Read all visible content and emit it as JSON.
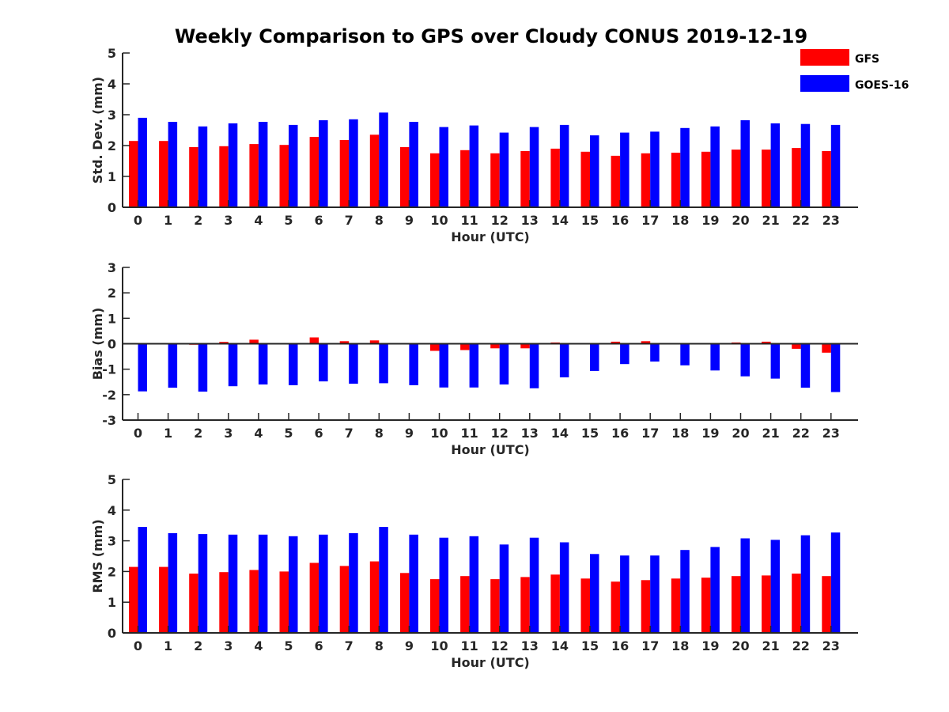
{
  "figure": {
    "title": "Weekly Comparison to GPS over Cloudy CONUS 2019-12-19"
  },
  "legend": {
    "placement": "top-right",
    "items": [
      {
        "label": "GFS",
        "color": "#ff0000"
      },
      {
        "label": "GOES-16",
        "color": "#0000ff"
      }
    ]
  },
  "chart_data": [
    {
      "type": "bar",
      "title": "Weekly Comparison to GPS over Cloudy CONUS 2019-12-19",
      "xlabel": "Hour (UTC)",
      "ylabel": "Std. Dev. (mm)",
      "ylim": [
        0,
        5
      ],
      "yticks": [
        0,
        1,
        2,
        3,
        4,
        5
      ],
      "grid": false,
      "categories": [
        "0",
        "1",
        "2",
        "3",
        "4",
        "5",
        "6",
        "7",
        "8",
        "9",
        "10",
        "11",
        "12",
        "13",
        "14",
        "15",
        "16",
        "17",
        "18",
        "19",
        "20",
        "21",
        "22",
        "23"
      ],
      "series": [
        {
          "name": "GFS",
          "color": "#ff0000",
          "values": [
            2.15,
            2.15,
            1.95,
            1.98,
            2.05,
            2.02,
            2.28,
            2.18,
            2.35,
            1.95,
            1.75,
            1.85,
            1.75,
            1.82,
            1.9,
            1.8,
            1.67,
            1.75,
            1.77,
            1.8,
            1.87,
            1.87,
            1.92,
            1.82
          ]
        },
        {
          "name": "GOES-16",
          "color": "#0000ff",
          "values": [
            2.9,
            2.77,
            2.62,
            2.72,
            2.77,
            2.67,
            2.82,
            2.85,
            3.07,
            2.77,
            2.6,
            2.65,
            2.42,
            2.6,
            2.67,
            2.33,
            2.42,
            2.45,
            2.57,
            2.62,
            2.82,
            2.72,
            2.7,
            2.67
          ]
        }
      ]
    },
    {
      "type": "bar",
      "xlabel": "Hour (UTC)",
      "ylabel": "Bias (mm)",
      "ylim": [
        -3,
        3
      ],
      "yticks": [
        -3,
        -2,
        -1,
        0,
        1,
        2,
        3
      ],
      "grid": false,
      "zero_line": true,
      "categories": [
        "0",
        "1",
        "2",
        "3",
        "4",
        "5",
        "6",
        "7",
        "8",
        "9",
        "10",
        "11",
        "12",
        "13",
        "14",
        "15",
        "16",
        "17",
        "18",
        "19",
        "20",
        "21",
        "22",
        "23"
      ],
      "series": [
        {
          "name": "GFS",
          "color": "#ff0000",
          "values": [
            0.0,
            -0.02,
            -0.04,
            0.07,
            0.16,
            0.02,
            0.25,
            0.1,
            0.13,
            0.02,
            -0.28,
            -0.25,
            -0.18,
            -0.18,
            0.05,
            0.02,
            0.08,
            0.1,
            0.0,
            0.0,
            0.05,
            0.08,
            -0.2,
            -0.35
          ]
        },
        {
          "name": "GOES-16",
          "color": "#0000ff",
          "values": [
            -1.87,
            -1.73,
            -1.88,
            -1.67,
            -1.6,
            -1.63,
            -1.48,
            -1.57,
            -1.55,
            -1.63,
            -1.72,
            -1.72,
            -1.6,
            -1.75,
            -1.32,
            -1.07,
            -0.8,
            -0.7,
            -0.85,
            -1.05,
            -1.28,
            -1.37,
            -1.73,
            -1.9
          ]
        }
      ]
    },
    {
      "type": "bar",
      "xlabel": "Hour (UTC)",
      "ylabel": "RMS (mm)",
      "ylim": [
        0,
        5
      ],
      "yticks": [
        0,
        1,
        2,
        3,
        4,
        5
      ],
      "grid": false,
      "categories": [
        "0",
        "1",
        "2",
        "3",
        "4",
        "5",
        "6",
        "7",
        "8",
        "9",
        "10",
        "11",
        "12",
        "13",
        "14",
        "15",
        "16",
        "17",
        "18",
        "19",
        "20",
        "21",
        "22",
        "23"
      ],
      "series": [
        {
          "name": "GFS",
          "color": "#ff0000",
          "values": [
            2.15,
            2.15,
            1.93,
            1.98,
            2.05,
            2.0,
            2.28,
            2.18,
            2.33,
            1.95,
            1.75,
            1.85,
            1.75,
            1.82,
            1.9,
            1.77,
            1.67,
            1.72,
            1.77,
            1.8,
            1.85,
            1.87,
            1.93,
            1.85
          ]
        },
        {
          "name": "GOES-16",
          "color": "#0000ff",
          "values": [
            3.45,
            3.25,
            3.22,
            3.2,
            3.2,
            3.15,
            3.2,
            3.25,
            3.45,
            3.2,
            3.1,
            3.15,
            2.88,
            3.1,
            2.95,
            2.57,
            2.52,
            2.52,
            2.7,
            2.8,
            3.08,
            3.03,
            3.18,
            3.27
          ]
        }
      ]
    }
  ]
}
